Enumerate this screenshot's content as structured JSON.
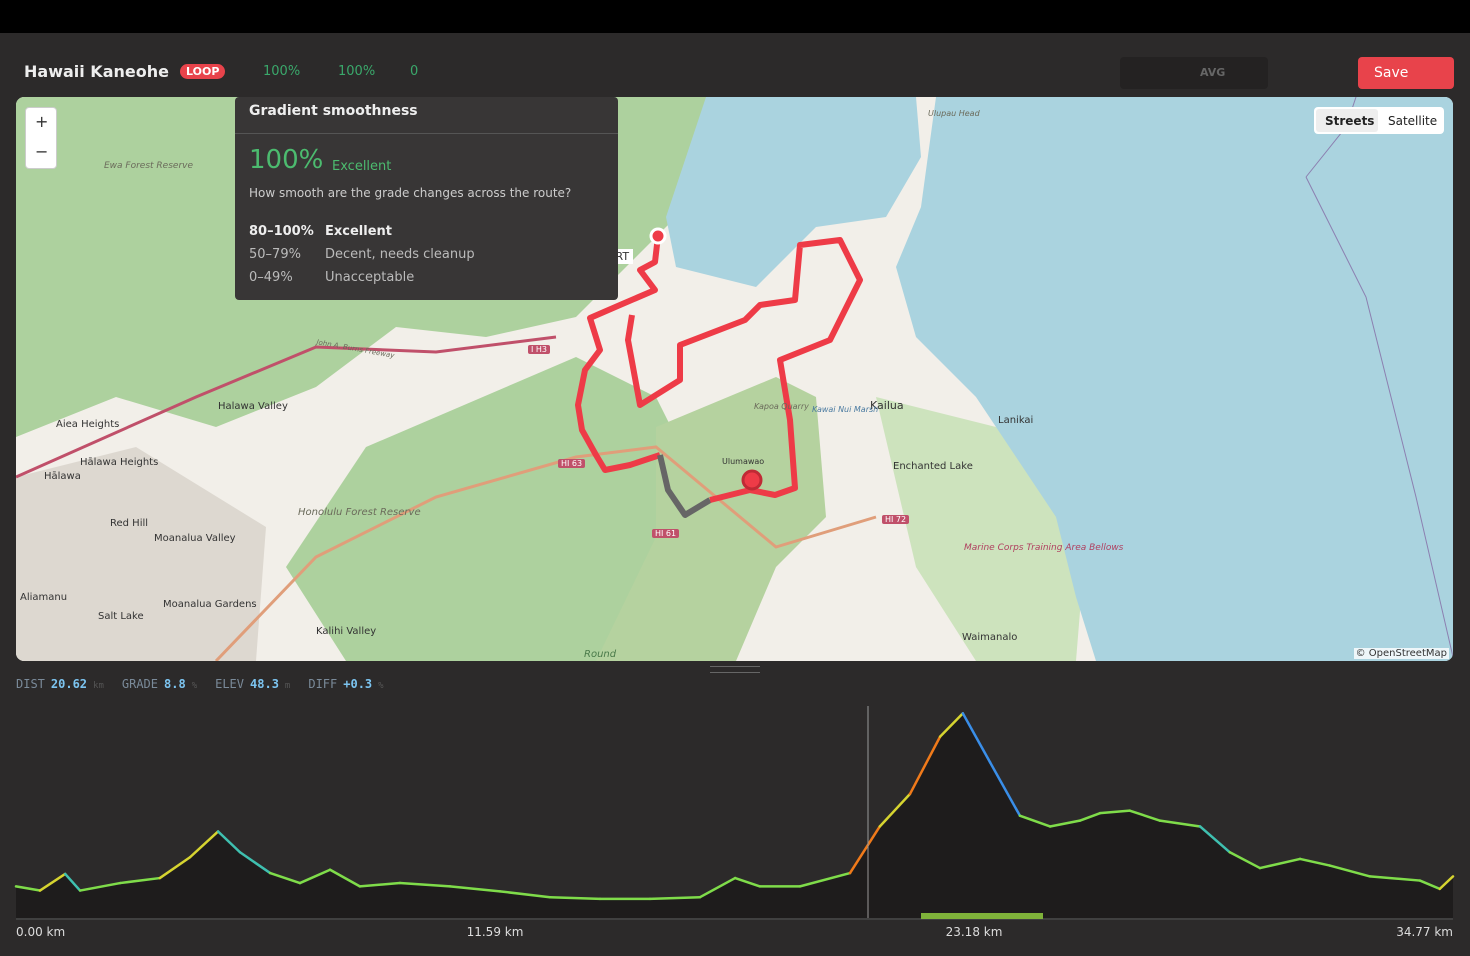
{
  "header": {
    "title": "Hawaii Kaneohe",
    "badge": "LOOP",
    "smoothness": "100%",
    "consistency": "100%",
    "warnings": "0",
    "avg": "AVG",
    "save": "Save"
  },
  "map": {
    "zoom_in": "+",
    "zoom_out": "−",
    "streets": "Streets",
    "satellite": "Satellite",
    "attribution": "© OpenStreetMap",
    "start": "ART",
    "labels": [
      "Ewa Forest Reserve",
      "Aiea Heights",
      "Hālawa Heights",
      "Hālawa",
      "Red Hill",
      "Moanalua Valley",
      "Aliamanu",
      "Salt Lake",
      "Moanalua Gardens",
      "Kalihi Valley",
      "Honolulu Forest Reserve",
      "Halawa Valley",
      "Kailua",
      "Lanikai",
      "Enchanted Lake",
      "Waimanalo",
      "Marine Corps Training Area Bellows",
      "Ulumawao",
      "Kapoa Quarry",
      "Kawai Nui Marsh",
      "Ulupau Head",
      "Round",
      "I H3",
      "HI 63",
      "HI 61",
      "HI 72",
      "John A. Burns Freeway"
    ]
  },
  "tooltip": {
    "title": "Gradient smoothness",
    "score": "100%",
    "rating": "Excellent",
    "question": "How smooth are the grade changes across the route?",
    "rows": [
      [
        "80–100%",
        "Excellent"
      ],
      [
        "50–79%",
        "Decent, needs cleanup"
      ],
      [
        "0–49%",
        "Unacceptable"
      ]
    ]
  },
  "stats": [
    {
      "label": "DIST",
      "value": "20.62",
      "unit": "km"
    },
    {
      "label": "GRADE",
      "value": "8.8",
      "unit": "%"
    },
    {
      "label": "ELEV",
      "value": "48.3",
      "unit": "m"
    },
    {
      "label": "DIFF",
      "value": "+0.3",
      "unit": "%"
    }
  ],
  "chart_data": {
    "type": "area",
    "xlim": [
      0,
      34.77
    ],
    "ylim": [
      0,
      250
    ],
    "xticks": [
      {
        "value": 0,
        "label": "0.00 km"
      },
      {
        "value": 11.59,
        "label": "11.59 km"
      },
      {
        "value": 23.18,
        "label": "23.18 km"
      },
      {
        "value": 34.77,
        "label": "34.77 km"
      }
    ],
    "x": [
      0,
      0.58,
      1.19,
      1.55,
      2.52,
      3.48,
      4.21,
      4.89,
      5.42,
      6.15,
      6.87,
      7.6,
      8.32,
      9.29,
      10.5,
      11.71,
      12.92,
      14.13,
      15.34,
      16.55,
      17.4,
      18,
      18.97,
      20.18,
      20.9,
      21.63,
      22.36,
      22.91,
      23.57,
      24.29,
      25.02,
      25.74,
      26.23,
      26.95,
      27.68,
      28.65,
      29.37,
      30.1,
      31.07,
      31.79,
      32.76,
      33.97,
      34.45,
      34.77
    ],
    "values": [
      38,
      33,
      53,
      33,
      42,
      48,
      73,
      104,
      79,
      54,
      42,
      58,
      38,
      42,
      38,
      32,
      25,
      23,
      23,
      25,
      48,
      38,
      38,
      54,
      110,
      149,
      218,
      246,
      187,
      123,
      110,
      117,
      126,
      129,
      117,
      110,
      79,
      60,
      71,
      63,
      50,
      45,
      35,
      50
    ]
  }
}
